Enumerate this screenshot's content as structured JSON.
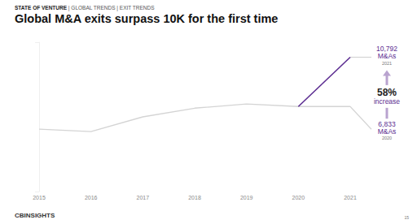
{
  "chart_data": {
    "type": "line",
    "header": "STATE OF VENTURE | GLOBAL TRENDS | EXIT TRENDS",
    "title": "Global M&A exits surpass 10K for the first time",
    "categories": [
      "2015",
      "2016",
      "2017",
      "2018",
      "2019",
      "2020",
      "2021"
    ],
    "series": [
      {
        "color": "#d4d4d4",
        "values": [
          5020,
          4820,
          6000,
          6700,
          7030,
          6833,
          6833
        ]
      },
      {
        "color": "#5c2d91",
        "values": [
          null,
          null,
          null,
          null,
          null,
          6833,
          10792
        ]
      }
    ],
    "annotations": [
      {
        "value": 10792,
        "label": "10,792",
        "text": "M&As",
        "year": "2021"
      },
      {
        "value": 6833,
        "label": "6,833",
        "text": "M&As",
        "year": "2020"
      }
    ],
    "change": {
      "value": 58,
      "label": "58%",
      "text": "increase"
    },
    "ylim": [
      0,
      12000
    ],
    "yticks": [
      0,
      12000
    ],
    "tick_labels": "x",
    "grid": false,
    "source": "CBINSIGHTS",
    "page_number": "15"
  }
}
